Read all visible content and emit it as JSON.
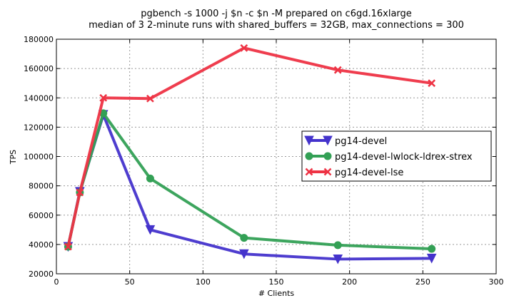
{
  "chart_data": {
    "type": "line",
    "title": "pgbench -s 1000 -j $n -c $n -M prepared on c6gd.16xlarge",
    "subtitle": "median of 3 2-minute runs with shared_buffers = 32GB, max_connections = 300",
    "xlabel": "# Clients",
    "ylabel": "TPS",
    "xlim": [
      0,
      300
    ],
    "ylim": [
      20000,
      180000
    ],
    "xticks": [
      0,
      50,
      100,
      150,
      200,
      250,
      300
    ],
    "yticks": [
      20000,
      40000,
      60000,
      80000,
      100000,
      120000,
      140000,
      160000,
      180000
    ],
    "grid": true,
    "legend_position": "center-right",
    "series": [
      {
        "name": "pg14-devel",
        "color": "#4433cc",
        "marker": "triangle-down",
        "x": [
          8,
          16,
          32,
          64,
          128,
          192,
          256
        ],
        "y": [
          38500,
          76000,
          128500,
          50000,
          33500,
          30000,
          30500
        ]
      },
      {
        "name": "pg14-devel-lwlock-ldrex-strex",
        "color": "#33a055",
        "marker": "circle",
        "x": [
          8,
          16,
          32,
          64,
          128,
          192,
          256
        ],
        "y": [
          38500,
          75500,
          129500,
          85000,
          44500,
          39500,
          37000
        ]
      },
      {
        "name": "pg14-devel-lse",
        "color": "#ee3344",
        "marker": "x",
        "x": [
          8,
          16,
          32,
          64,
          128,
          192,
          256
        ],
        "y": [
          38500,
          75500,
          140000,
          139500,
          174000,
          159000,
          150000
        ]
      }
    ]
  }
}
